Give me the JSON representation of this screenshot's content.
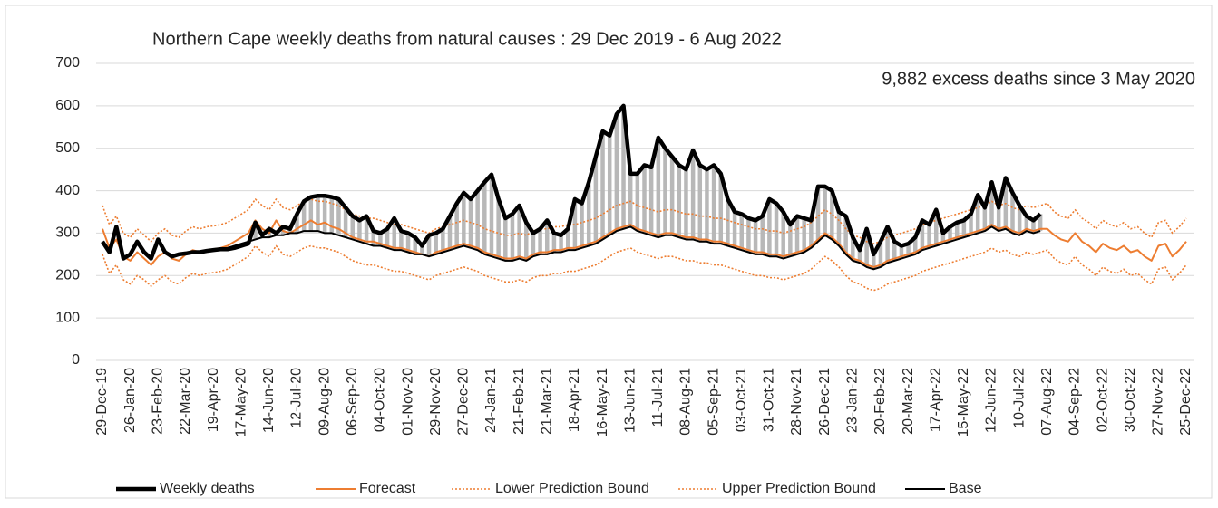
{
  "chart_data": {
    "type": "line",
    "title": "Northern Cape weekly deaths from natural causes : 29 Dec 2019 - 6 Aug 2022",
    "annotation": "9,882 excess deaths since 3 May 2020",
    "categories": [
      "29-Dec-19",
      null,
      null,
      null,
      "26-Jan-20",
      null,
      null,
      null,
      "23-Feb-20",
      null,
      null,
      null,
      "22-Mar-20",
      null,
      null,
      null,
      "19-Apr-20",
      null,
      null,
      null,
      "17-May-20",
      null,
      null,
      null,
      "14-Jun-20",
      null,
      null,
      null,
      "12-Jul-20",
      null,
      null,
      null,
      "09-Aug-20",
      null,
      null,
      null,
      "06-Sep-20",
      null,
      null,
      null,
      "04-Oct-20",
      null,
      null,
      null,
      "01-Nov-20",
      null,
      null,
      null,
      "29-Nov-20",
      null,
      null,
      null,
      "27-Dec-20",
      null,
      null,
      null,
      "24-Jan-21",
      null,
      null,
      null,
      "21-Feb-21",
      null,
      null,
      null,
      "21-Mar-21",
      null,
      null,
      null,
      "18-Apr-21",
      null,
      null,
      null,
      "16-May-21",
      null,
      null,
      null,
      "13-Jun-21",
      null,
      null,
      null,
      "11-Jul-21",
      null,
      null,
      null,
      "08-Aug-21",
      null,
      null,
      null,
      "05-Sep-21",
      null,
      null,
      null,
      "03-Oct-21",
      null,
      null,
      null,
      "31-Oct-21",
      null,
      null,
      null,
      "28-Nov-21",
      null,
      null,
      null,
      "26-Dec-21",
      null,
      null,
      null,
      "23-Jan-22",
      null,
      null,
      null,
      "20-Feb-22",
      null,
      null,
      null,
      "20-Mar-22",
      null,
      null,
      null,
      "17-Apr-22",
      null,
      null,
      null,
      "15-May-22",
      null,
      null,
      null,
      "12-Jun-22",
      null,
      null,
      null,
      "10-Jul-22",
      null,
      null,
      null,
      "07-Aug-22",
      null,
      null,
      null,
      "04-Sep-22",
      null,
      null,
      null,
      "02-Oct-22",
      null,
      null,
      null,
      "30-Oct-22",
      null,
      null,
      null,
      "27-Nov-22",
      null,
      null,
      null,
      "25-Dec-22"
    ],
    "ylim": [
      0,
      700
    ],
    "yticks": [
      0,
      100,
      200,
      300,
      400,
      500,
      600,
      700
    ],
    "grid": true,
    "legend": "bottom",
    "excess_fill": "#b8b8b8",
    "series": [
      {
        "name": "Weekly deaths",
        "color": "#000000",
        "line_style": "bold",
        "values": [
          280,
          255,
          315,
          240,
          250,
          280,
          255,
          240,
          285,
          255,
          245,
          250,
          252,
          255,
          255,
          258,
          260,
          262,
          262,
          265,
          270,
          275,
          325,
          295,
          310,
          300,
          315,
          310,
          345,
          375,
          385,
          388,
          388,
          385,
          380,
          360,
          340,
          330,
          340,
          305,
          300,
          310,
          335,
          305,
          300,
          290,
          270,
          295,
          300,
          310,
          340,
          370,
          395,
          380,
          400,
          420,
          438,
          380,
          335,
          345,
          365,
          325,
          300,
          310,
          330,
          300,
          295,
          310,
          380,
          370,
          420,
          480,
          540,
          530,
          580,
          600,
          440,
          440,
          460,
          455,
          525,
          500,
          480,
          460,
          450,
          495,
          460,
          450,
          460,
          440,
          380,
          350,
          345,
          335,
          330,
          340,
          380,
          370,
          350,
          320,
          340,
          335,
          330,
          410,
          410,
          400,
          350,
          340,
          290,
          260,
          310,
          250,
          280,
          315,
          280,
          270,
          275,
          290,
          330,
          320,
          355,
          300,
          315,
          325,
          330,
          345,
          390,
          360,
          420,
          360,
          430,
          395,
          365,
          340,
          330,
          345,
          null,
          null,
          null,
          null,
          null,
          null,
          null,
          null,
          null,
          null,
          null,
          null,
          null,
          null,
          null,
          null,
          null,
          null,
          null,
          null,
          null
        ]
      },
      {
        "name": "Forecast",
        "color": "#ed7d31",
        "line_style": "solid",
        "values": [
          310,
          265,
          285,
          245,
          235,
          255,
          240,
          225,
          245,
          255,
          240,
          235,
          250,
          260,
          255,
          260,
          262,
          265,
          270,
          280,
          290,
          300,
          330,
          310,
          300,
          330,
          305,
          300,
          310,
          320,
          330,
          320,
          325,
          315,
          310,
          300,
          290,
          285,
          280,
          280,
          275,
          270,
          265,
          265,
          260,
          255,
          250,
          245,
          255,
          260,
          265,
          270,
          275,
          270,
          265,
          255,
          250,
          245,
          240,
          240,
          245,
          240,
          250,
          255,
          255,
          260,
          260,
          265,
          265,
          270,
          275,
          280,
          290,
          300,
          310,
          315,
          320,
          310,
          305,
          300,
          295,
          300,
          300,
          295,
          290,
          290,
          285,
          285,
          280,
          280,
          275,
          270,
          265,
          260,
          255,
          255,
          250,
          250,
          245,
          250,
          255,
          260,
          270,
          285,
          300,
          290,
          275,
          255,
          240,
          235,
          225,
          220,
          225,
          235,
          240,
          245,
          250,
          255,
          265,
          270,
          275,
          280,
          285,
          290,
          295,
          300,
          305,
          310,
          320,
          310,
          315,
          305,
          300,
          310,
          305,
          310,
          310,
          295,
          285,
          280,
          300,
          280,
          270,
          255,
          275,
          265,
          260,
          270,
          255,
          260,
          245,
          235,
          270,
          275,
          245,
          260,
          280
        ]
      },
      {
        "name": "Lower Prediction Bound",
        "color": "#ed7d31",
        "line_style": "dotted",
        "values": [
          250,
          205,
          225,
          190,
          180,
          200,
          190,
          175,
          190,
          200,
          185,
          180,
          195,
          205,
          200,
          205,
          207,
          210,
          215,
          225,
          235,
          245,
          270,
          255,
          245,
          270,
          250,
          245,
          255,
          265,
          270,
          265,
          265,
          260,
          255,
          245,
          235,
          230,
          225,
          225,
          220,
          215,
          210,
          210,
          205,
          200,
          195,
          190,
          200,
          205,
          210,
          215,
          220,
          215,
          210,
          200,
          195,
          190,
          185,
          185,
          190,
          185,
          195,
          200,
          200,
          205,
          205,
          210,
          210,
          215,
          220,
          225,
          235,
          245,
          255,
          260,
          265,
          255,
          250,
          245,
          240,
          245,
          245,
          240,
          235,
          235,
          230,
          230,
          225,
          225,
          220,
          215,
          210,
          205,
          200,
          200,
          195,
          195,
          190,
          195,
          200,
          205,
          215,
          230,
          245,
          235,
          220,
          200,
          185,
          180,
          170,
          165,
          170,
          180,
          185,
          190,
          195,
          200,
          210,
          215,
          220,
          225,
          230,
          235,
          240,
          245,
          250,
          255,
          265,
          255,
          260,
          250,
          245,
          255,
          250,
          255,
          260,
          240,
          230,
          225,
          245,
          225,
          215,
          200,
          220,
          210,
          205,
          215,
          200,
          205,
          190,
          180,
          215,
          220,
          190,
          205,
          225
        ]
      },
      {
        "name": "Upper Prediction Bound",
        "color": "#ed7d31",
        "line_style": "dotted",
        "values": [
          365,
          320,
          340,
          300,
          290,
          310,
          295,
          280,
          300,
          310,
          295,
          290,
          305,
          315,
          310,
          315,
          317,
          320,
          325,
          335,
          345,
          355,
          380,
          365,
          355,
          380,
          360,
          355,
          365,
          375,
          380,
          375,
          375,
          370,
          365,
          355,
          345,
          340,
          335,
          335,
          330,
          325,
          320,
          320,
          315,
          310,
          305,
          300,
          310,
          315,
          320,
          325,
          330,
          325,
          320,
          310,
          305,
          300,
          295,
          295,
          300,
          295,
          305,
          310,
          310,
          315,
          315,
          320,
          320,
          325,
          330,
          335,
          345,
          355,
          365,
          370,
          375,
          365,
          360,
          355,
          350,
          355,
          355,
          350,
          345,
          345,
          340,
          340,
          335,
          335,
          330,
          325,
          320,
          315,
          310,
          310,
          305,
          305,
          300,
          305,
          310,
          315,
          325,
          340,
          355,
          345,
          330,
          310,
          295,
          290,
          280,
          275,
          280,
          290,
          295,
          300,
          305,
          310,
          320,
          325,
          330,
          335,
          340,
          345,
          350,
          355,
          360,
          365,
          375,
          365,
          370,
          360,
          355,
          365,
          360,
          365,
          370,
          350,
          340,
          335,
          355,
          335,
          325,
          310,
          330,
          320,
          315,
          325,
          310,
          315,
          300,
          290,
          325,
          330,
          300,
          315,
          335
        ]
      },
      {
        "name": "Base",
        "color": "#000000",
        "line_style": "solid",
        "values": [
          null,
          null,
          null,
          null,
          null,
          null,
          null,
          null,
          null,
          null,
          null,
          null,
          null,
          null,
          null,
          null,
          null,
          null,
          265,
          270,
          275,
          280,
          285,
          290,
          290,
          295,
          295,
          300,
          300,
          305,
          305,
          305,
          300,
          300,
          295,
          290,
          285,
          280,
          275,
          270,
          270,
          265,
          260,
          260,
          255,
          250,
          250,
          245,
          250,
          255,
          260,
          265,
          270,
          265,
          260,
          250,
          245,
          240,
          235,
          235,
          240,
          235,
          245,
          250,
          250,
          255,
          255,
          260,
          260,
          265,
          270,
          275,
          285,
          295,
          305,
          310,
          315,
          305,
          300,
          295,
          290,
          295,
          295,
          290,
          285,
          285,
          280,
          280,
          275,
          275,
          270,
          265,
          260,
          255,
          250,
          250,
          245,
          245,
          240,
          245,
          250,
          255,
          265,
          280,
          295,
          285,
          270,
          250,
          235,
          230,
          220,
          215,
          220,
          230,
          235,
          240,
          245,
          250,
          260,
          265,
          270,
          275,
          280,
          285,
          290,
          295,
          300,
          305,
          315,
          305,
          310,
          300,
          295,
          305,
          300,
          305,
          null,
          null,
          null,
          null,
          null,
          null,
          null,
          null,
          null,
          null,
          null,
          null,
          null,
          null,
          null,
          null,
          null,
          null,
          null,
          null,
          null
        ]
      }
    ]
  }
}
